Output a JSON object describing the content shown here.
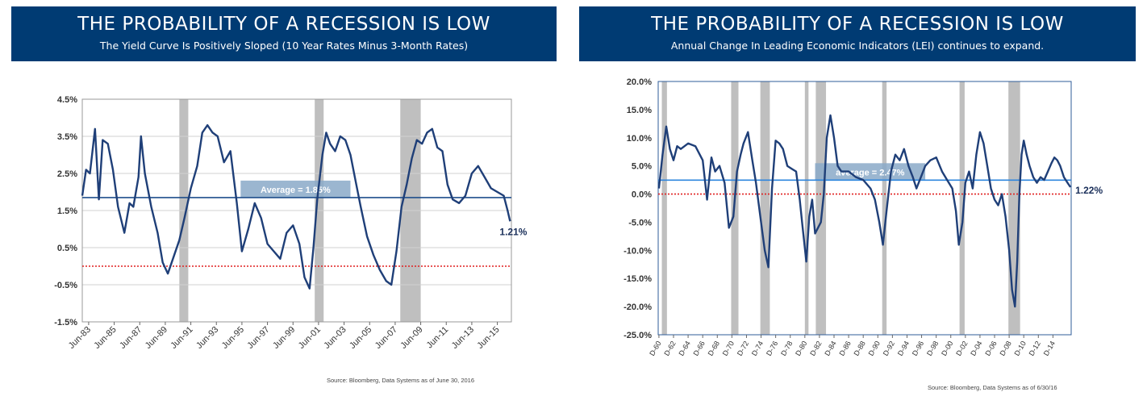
{
  "panels": [
    {
      "title": "THE PROBABILITY OF A RECESSION IS LOW",
      "subtitle": "The Yield Curve Is Positively Sloped (10 Year Rates Minus 3-Month Rates)",
      "source": "Source:  Bloomberg, Data Systems as of June 30, 2016"
    },
    {
      "title": "THE PROBABILITY OF A RECESSION IS LOW",
      "subtitle": "Annual Change In Leading Economic Indicators (LEI) continues to expand.",
      "source": "Source:  Bloomberg, Data Systems as of 6/30/16"
    }
  ],
  "colors": {
    "banner": "#003b73",
    "line": "#1f3f78",
    "average": "#1f4e8c",
    "average_right": "#2e86de",
    "zero": "#e02020",
    "recession": "#bfbfbf",
    "avg_box": "#8aa9c8"
  },
  "chart_data": [
    {
      "type": "line",
      "title": "The Yield Curve Is Positively Sloped (10 Year Rates Minus 3-Month Rates)",
      "xlabel": "",
      "ylabel": "",
      "ylim": [
        -1.5,
        4.5
      ],
      "xlim": [
        1983.0,
        2016.6
      ],
      "y_ticks": [
        -1.5,
        -0.5,
        0.5,
        1.5,
        2.5,
        3.5,
        4.5
      ],
      "y_tick_labels": [
        "-1.5%",
        "-0.5%",
        "0.5%",
        "1.5%",
        "2.5%",
        "3.5%",
        "4.5%"
      ],
      "x_ticks": [
        1983.5,
        1985.5,
        1987.5,
        1989.5,
        1991.5,
        1993.5,
        1995.5,
        1997.5,
        1999.5,
        2001.5,
        2003.5,
        2005.5,
        2007.5,
        2009.5,
        2011.5,
        2013.5,
        2015.5
      ],
      "x_tick_labels": [
        "Jun-83",
        "Jun-85",
        "Jun-87",
        "Jun-89",
        "Jun-91",
        "Jun-93",
        "Jun-95",
        "Jun-97",
        "Jun-99",
        "Jun-01",
        "Jun-03",
        "Jun-05",
        "Jun-07",
        "Jun-09",
        "Jun-11",
        "Jun-13",
        "Jun-15"
      ],
      "recessions": [
        [
          1990.6,
          1991.3
        ],
        [
          2001.2,
          2001.9
        ],
        [
          2007.9,
          2009.5
        ]
      ],
      "average": 1.85,
      "average_label": "Average = 1.85%",
      "zero_line": 0,
      "last_value_label": "1.21%",
      "series": [
        {
          "name": "10Y - 3M spread",
          "x": [
            1983.0,
            1983.3,
            1983.6,
            1984.0,
            1984.3,
            1984.6,
            1985.0,
            1985.4,
            1985.8,
            1986.3,
            1986.7,
            1987.0,
            1987.4,
            1987.6,
            1987.9,
            1988.4,
            1988.9,
            1989.3,
            1989.7,
            1990.2,
            1990.6,
            1991.0,
            1991.5,
            1992.0,
            1992.4,
            1992.8,
            1993.2,
            1993.6,
            1994.1,
            1994.6,
            1995.1,
            1995.5,
            1996.0,
            1996.5,
            1997.0,
            1997.5,
            1998.0,
            1998.5,
            1999.0,
            1999.5,
            2000.0,
            2000.4,
            2000.8,
            2001.1,
            2001.4,
            2001.8,
            2002.1,
            2002.4,
            2002.8,
            2003.2,
            2003.6,
            2004.0,
            2004.4,
            2004.8,
            2005.3,
            2005.8,
            2006.3,
            2006.8,
            2007.2,
            2007.6,
            2008.0,
            2008.4,
            2008.8,
            2009.2,
            2009.6,
            2010.0,
            2010.4,
            2010.8,
            2011.2,
            2011.6,
            2012.0,
            2012.5,
            2013.0,
            2013.5,
            2014.0,
            2014.5,
            2015.0,
            2015.5,
            2016.0,
            2016.3,
            2016.5
          ],
          "values": [
            1.9,
            2.6,
            2.5,
            3.7,
            1.8,
            3.4,
            3.3,
            2.6,
            1.6,
            0.9,
            1.7,
            1.6,
            2.4,
            3.5,
            2.5,
            1.6,
            0.9,
            0.1,
            -0.2,
            0.3,
            0.7,
            1.3,
            2.1,
            2.7,
            3.6,
            3.8,
            3.6,
            3.5,
            2.8,
            3.1,
            1.7,
            0.4,
            1.0,
            1.7,
            1.3,
            0.6,
            0.4,
            0.2,
            0.9,
            1.1,
            0.6,
            -0.3,
            -0.6,
            0.5,
            1.8,
            3.0,
            3.6,
            3.3,
            3.1,
            3.5,
            3.4,
            3.0,
            2.3,
            1.6,
            0.8,
            0.3,
            -0.1,
            -0.4,
            -0.5,
            0.4,
            1.6,
            2.2,
            2.9,
            3.4,
            3.3,
            3.6,
            3.7,
            3.2,
            3.1,
            2.2,
            1.8,
            1.7,
            1.9,
            2.5,
            2.7,
            2.4,
            2.1,
            2.0,
            1.9,
            1.5,
            1.21
          ]
        }
      ]
    },
    {
      "type": "line",
      "title": "Annual Change In Leading Economic Indicators (LEI) continues to expand.",
      "xlabel": "",
      "ylabel": "",
      "ylim": [
        -25,
        20
      ],
      "xlim": [
        1959.9,
        2016.5
      ],
      "y_ticks": [
        -25,
        -20,
        -15,
        -10,
        -5,
        0,
        5,
        10,
        15,
        20
      ],
      "y_tick_labels": [
        "-25.0%",
        "-20.0%",
        "-15.0%",
        "-10.0%",
        "-5.0%",
        "0.0%",
        "5.0%",
        "10.0%",
        "15.0%",
        "20.0%"
      ],
      "x_ticks": [
        1960,
        1962,
        1964,
        1966,
        1968,
        1970,
        1972,
        1974,
        1976,
        1978,
        1980,
        1982,
        1984,
        1986,
        1988,
        1990,
        1992,
        1994,
        1996,
        1998,
        2000,
        2002,
        2004,
        2006,
        2008,
        2010,
        2012,
        2014
      ],
      "x_tick_labels": [
        "D-60",
        "D-62",
        "D-64",
        "D-66",
        "D-68",
        "D-70",
        "D-72",
        "D-74",
        "D-76",
        "D-78",
        "D-80",
        "D-82",
        "D-84",
        "D-86",
        "D-88",
        "D-90",
        "D-92",
        "D-94",
        "D-96",
        "D-98",
        "D-00",
        "D-02",
        "D-04",
        "D-06",
        "D-08",
        "D-10",
        "D-12",
        "D-14"
      ],
      "recessions": [
        [
          1960.4,
          1961.1
        ],
        [
          1969.9,
          1970.9
        ],
        [
          1973.9,
          1975.2
        ],
        [
          1980.0,
          1980.5
        ],
        [
          1981.5,
          1982.9
        ],
        [
          1990.6,
          1991.2
        ],
        [
          2001.2,
          2001.9
        ],
        [
          2007.9,
          2009.5
        ]
      ],
      "average": 2.47,
      "average_label": "average = 2.47%",
      "zero_line": 0,
      "last_value_label": "1.22%",
      "series": [
        {
          "name": "LEI YoY change",
          "x": [
            1960.0,
            1960.5,
            1961.0,
            1961.5,
            1962.0,
            1962.5,
            1963.0,
            1964.0,
            1965.0,
            1966.0,
            1966.6,
            1967.2,
            1967.7,
            1968.3,
            1969.0,
            1969.6,
            1970.2,
            1970.7,
            1971.2,
            1971.6,
            1972.2,
            1972.8,
            1973.3,
            1974.0,
            1974.5,
            1975.0,
            1975.5,
            1976.0,
            1976.5,
            1977.0,
            1977.6,
            1978.2,
            1978.8,
            1979.3,
            1979.7,
            1980.2,
            1980.6,
            1981.0,
            1981.4,
            1981.8,
            1982.2,
            1982.6,
            1983.0,
            1983.5,
            1984.0,
            1984.5,
            1985.0,
            1986.0,
            1987.0,
            1988.0,
            1989.0,
            1989.6,
            1990.2,
            1990.7,
            1991.2,
            1991.8,
            1992.4,
            1993.0,
            1993.6,
            1994.2,
            1994.8,
            1995.3,
            1995.9,
            1996.5,
            1997.2,
            1998.0,
            1998.8,
            1999.5,
            2000.2,
            2000.7,
            2001.1,
            2001.6,
            2002.0,
            2002.5,
            2003.0,
            2003.5,
            2004.0,
            2004.5,
            2005.0,
            2005.5,
            2006.0,
            2006.5,
            2007.0,
            2007.5,
            2008.0,
            2008.4,
            2008.8,
            2009.1,
            2009.4,
            2009.7,
            2010.0,
            2010.4,
            2010.8,
            2011.3,
            2011.8,
            2012.3,
            2012.8,
            2013.3,
            2013.8,
            2014.2,
            2014.6,
            2015.0,
            2015.5,
            2016.0,
            2016.4
          ],
          "values": [
            1.0,
            7.0,
            12.0,
            8.0,
            6.0,
            8.5,
            8.0,
            9.0,
            8.5,
            6.0,
            -1.0,
            6.5,
            4.0,
            5.0,
            2.0,
            -6.0,
            -4.0,
            4.0,
            7.0,
            9.0,
            11.0,
            6.0,
            2.0,
            -5.0,
            -10.0,
            -13.0,
            1.0,
            9.5,
            9.0,
            8.0,
            5.0,
            4.5,
            4.0,
            -1.0,
            -6.0,
            -12.0,
            -4.0,
            -1.0,
            -7.0,
            -6.0,
            -5.0,
            0.0,
            10.0,
            14.0,
            10.0,
            5.0,
            4.0,
            4.0,
            3.0,
            2.5,
            1.0,
            -1.0,
            -5.0,
            -9.0,
            -3.0,
            4.0,
            7.0,
            6.0,
            8.0,
            5.0,
            3.0,
            1.0,
            3.0,
            5.0,
            6.0,
            6.5,
            4.0,
            2.5,
            1.0,
            -3.0,
            -9.0,
            -5.0,
            2.0,
            4.0,
            1.0,
            7.0,
            11.0,
            9.0,
            5.0,
            1.0,
            -1.0,
            -2.0,
            0.0,
            -4.0,
            -10.0,
            -17.0,
            -20.0,
            -12.0,
            0.0,
            7.0,
            9.5,
            7.0,
            5.0,
            3.0,
            2.0,
            3.0,
            2.5,
            4.0,
            5.5,
            6.5,
            6.0,
            5.0,
            3.0,
            2.0,
            1.22
          ]
        }
      ]
    }
  ]
}
